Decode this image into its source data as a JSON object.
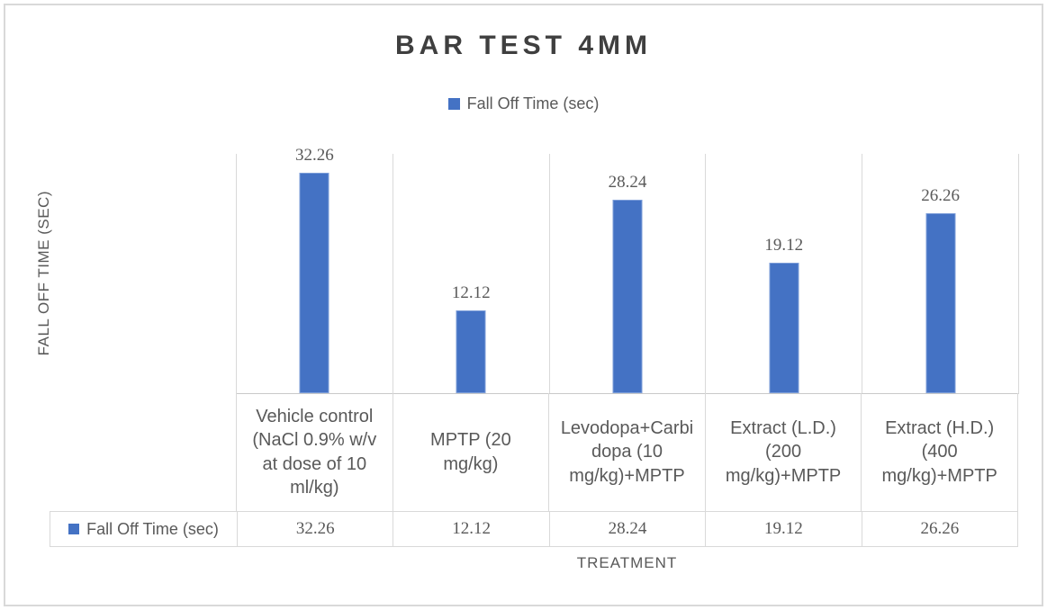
{
  "title": "BAR TEST 4MM",
  "legend": {
    "label": "Fall Off Time (sec)"
  },
  "axes": {
    "y_title": "FALL OFF TIME (SEC)",
    "x_title": "TREATMENT"
  },
  "chart_data": {
    "type": "bar",
    "title": "BAR TEST 4MM",
    "categories": [
      "Vehicle control (NaCl 0.9% w/v at dose of 10 ml/kg)",
      "MPTP (20 mg/kg)",
      "Levodopa+Carbidopa (10 mg/kg)+MPTP",
      "Extract (L.D.) (200 mg/kg)+MPTP",
      "Extract (H.D.) (400 mg/kg)+MPTP"
    ],
    "categories_display": [
      "Vehicle control\n(NaCl 0.9% w/v\nat dose of 10\nml/kg)",
      "MPTP (20\nmg/kg)",
      "Levodopa+Carbi\ndopa (10\nmg/kg)+MPTP",
      "Extract (L.D.)\n(200\nmg/kg)+MPTP",
      "Extract (H.D.)\n(400\nmg/kg)+MPTP"
    ],
    "series": [
      {
        "name": "Fall Off Time (sec)",
        "values": [
          32.26,
          12.12,
          28.24,
          19.12,
          26.26
        ]
      }
    ],
    "data_labels": [
      "32.26",
      "12.12",
      "28.24",
      "19.12",
      "26.26"
    ],
    "xlabel": "TREATMENT",
    "ylabel": "FALL OFF TIME (SEC)",
    "ylim": [
      0,
      35
    ],
    "grid": "vertical-category-separators",
    "legend_position": "top",
    "data_table_shown": true,
    "bar_color": "#4472C4"
  },
  "data_table": {
    "row_label": "Fall Off Time (sec)",
    "values": [
      "32.26",
      "12.12",
      "28.24",
      "19.12",
      "26.26"
    ]
  },
  "colors": {
    "bar": "#4472C4",
    "text": "#595959",
    "title_text": "#3f3f3f",
    "grid": "#D9D9D9"
  }
}
